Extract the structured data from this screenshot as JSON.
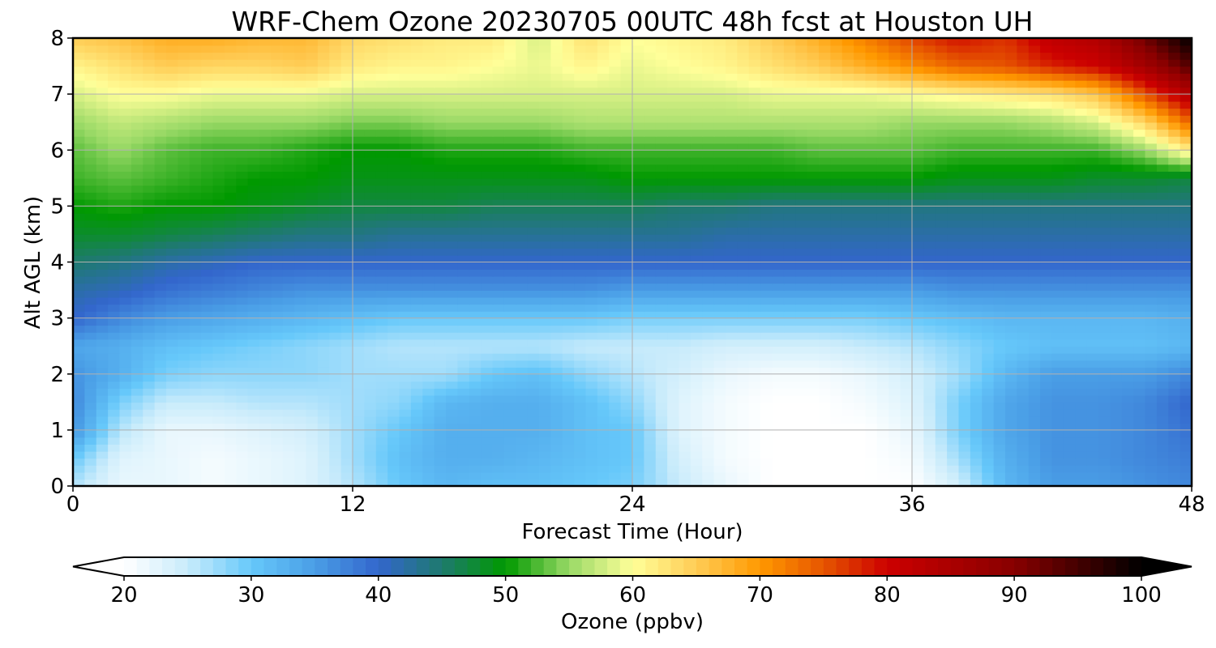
{
  "chart_data": {
    "type": "heatmap",
    "title": "WRF-Chem Ozone  20230705 00UTC 48h fcst at Houston UH",
    "xlabel": "Forecast Time (Hour)",
    "ylabel": "Alt AGL (km)",
    "xlim": [
      0,
      48
    ],
    "ylim": [
      0,
      8
    ],
    "xticks": [
      0,
      12,
      24,
      36,
      48
    ],
    "yticks": [
      0,
      1,
      2,
      3,
      4,
      5,
      6,
      7,
      8
    ],
    "grid": true,
    "colorbar": {
      "label": "Ozone  (ppbv)",
      "vmin": 20,
      "vmax": 100,
      "ticks": [
        20,
        30,
        40,
        50,
        60,
        70,
        80,
        90,
        100
      ],
      "extend": "both",
      "stops": [
        {
          "v": 20,
          "color": "#ffffff"
        },
        {
          "v": 25,
          "color": "#c8ebfb"
        },
        {
          "v": 30,
          "color": "#66c8fa"
        },
        {
          "v": 35,
          "color": "#4a9ee6"
        },
        {
          "v": 40,
          "color": "#3366cc"
        },
        {
          "v": 45,
          "color": "#1e7a6e"
        },
        {
          "v": 50,
          "color": "#009900"
        },
        {
          "v": 55,
          "color": "#99d966"
        },
        {
          "v": 60,
          "color": "#ffff99"
        },
        {
          "v": 65,
          "color": "#ffcc55"
        },
        {
          "v": 70,
          "color": "#ff9900"
        },
        {
          "v": 75,
          "color": "#e65500"
        },
        {
          "v": 80,
          "color": "#cc0000"
        },
        {
          "v": 90,
          "color": "#880000"
        },
        {
          "v": 100,
          "color": "#000000"
        }
      ]
    },
    "x": [
      0,
      2,
      4,
      6,
      8,
      10,
      12,
      14,
      16,
      18,
      20,
      22,
      24,
      26,
      28,
      30,
      32,
      34,
      36,
      38,
      40,
      42,
      44,
      46,
      48
    ],
    "y": [
      0,
      0.5,
      1,
      1.5,
      2,
      2.5,
      3,
      3.5,
      4,
      4.5,
      5,
      5.5,
      6,
      6.5,
      7,
      7.5,
      8
    ],
    "z": [
      [
        26,
        22,
        22,
        21,
        22,
        23,
        26,
        30,
        32,
        31,
        31,
        30,
        29,
        25,
        22,
        20,
        20,
        20,
        20,
        24,
        32,
        35,
        35,
        36,
        37
      ],
      [
        30,
        23,
        22,
        21,
        22,
        23,
        27,
        31,
        33,
        33,
        32,
        31,
        30,
        24,
        21,
        20,
        20,
        20,
        21,
        27,
        33,
        36,
        36,
        37,
        38
      ],
      [
        36,
        26,
        22,
        22,
        23,
        24,
        27,
        30,
        33,
        33,
        33,
        31,
        30,
        23,
        21,
        20,
        20,
        20,
        22,
        29,
        34,
        36,
        36,
        37,
        39
      ],
      [
        37,
        29,
        25,
        25,
        26,
        26,
        27,
        28,
        32,
        33,
        33,
        31,
        28,
        23,
        21,
        20,
        20,
        21,
        23,
        29,
        34,
        36,
        36,
        37,
        40
      ],
      [
        36,
        33,
        29,
        28,
        28,
        28,
        27,
        27,
        27,
        30,
        31,
        28,
        26,
        24,
        22,
        21,
        21,
        22,
        24,
        27,
        32,
        35,
        35,
        35,
        37
      ],
      [
        34,
        33,
        31,
        30,
        29,
        28,
        27,
        26,
        26,
        26,
        26,
        25,
        25,
        25,
        24,
        24,
        24,
        25,
        26,
        28,
        30,
        31,
        31,
        31,
        32
      ],
      [
        40,
        37,
        35,
        34,
        33,
        32,
        31,
        30,
        30,
        30,
        30,
        30,
        29,
        29,
        29,
        29,
        29,
        29,
        30,
        31,
        32,
        32,
        32,
        32,
        33
      ],
      [
        42,
        41,
        39,
        38,
        37,
        36,
        36,
        36,
        36,
        36,
        36,
        36,
        35,
        35,
        35,
        35,
        35,
        35,
        35,
        36,
        36,
        36,
        36,
        36,
        36
      ],
      [
        45,
        44,
        42,
        41,
        40,
        40,
        40,
        40,
        40,
        40,
        40,
        40,
        40,
        40,
        40,
        40,
        40,
        40,
        40,
        40,
        40,
        40,
        40,
        40,
        40
      ],
      [
        48,
        48,
        47,
        46,
        45,
        44,
        44,
        43,
        43,
        43,
        43,
        43,
        43,
        43,
        42,
        42,
        42,
        42,
        42,
        42,
        42,
        42,
        42,
        42,
        42
      ],
      [
        50,
        51,
        50,
        50,
        49,
        48,
        47,
        47,
        47,
        46,
        46,
        46,
        46,
        45,
        45,
        44,
        44,
        44,
        44,
        44,
        44,
        44,
        44,
        44,
        44
      ],
      [
        52,
        53,
        52,
        51,
        50,
        50,
        49,
        49,
        49,
        49,
        49,
        49,
        50,
        50,
        50,
        50,
        50,
        50,
        50,
        49,
        49,
        49,
        48,
        48,
        47
      ],
      [
        53,
        55,
        53,
        52,
        52,
        51,
        50,
        50,
        51,
        51,
        51,
        52,
        52,
        52,
        52,
        52,
        53,
        53,
        53,
        52,
        52,
        52,
        52,
        55,
        62
      ],
      [
        55,
        57,
        56,
        55,
        55,
        55,
        54,
        54,
        55,
        55,
        55,
        56,
        56,
        56,
        56,
        56,
        56,
        56,
        55,
        55,
        55,
        56,
        58,
        64,
        74
      ],
      [
        58,
        60,
        60,
        59,
        59,
        59,
        58,
        58,
        58,
        58,
        58,
        58,
        58,
        58,
        58,
        59,
        59,
        59,
        60,
        61,
        62,
        63,
        66,
        75,
        84
      ],
      [
        61,
        63,
        65,
        64,
        64,
        65,
        62,
        61,
        61,
        60,
        59,
        61,
        59,
        60,
        61,
        63,
        65,
        68,
        71,
        74,
        75,
        78,
        80,
        86,
        94
      ],
      [
        65,
        66,
        68,
        68,
        67,
        67,
        64,
        63,
        62,
        62,
        58,
        63,
        60,
        61,
        62,
        65,
        68,
        72,
        76,
        79,
        77,
        82,
        84,
        92,
        100
      ]
    ]
  }
}
